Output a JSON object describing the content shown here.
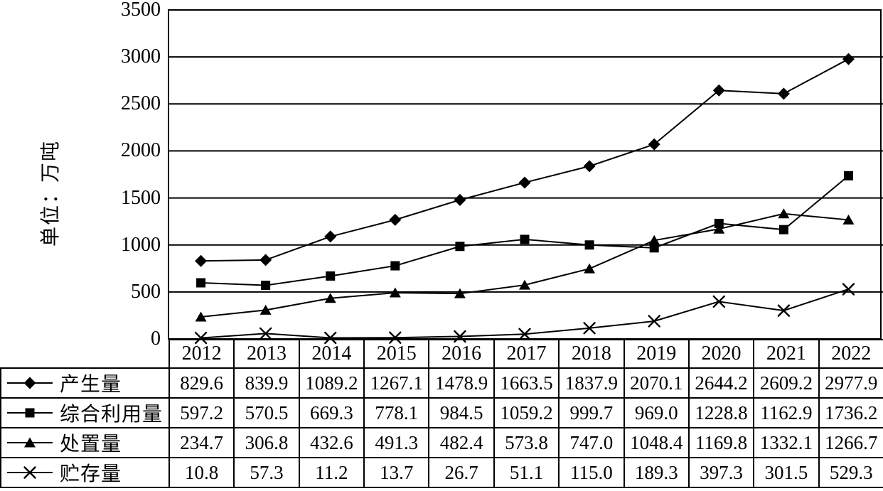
{
  "y_axis": {
    "title": "单位：万吨",
    "ticks": [
      0,
      500,
      1000,
      1500,
      2000,
      2500,
      3000,
      3500
    ],
    "min": 0,
    "max": 3500,
    "step": 500
  },
  "chart_data": {
    "type": "line",
    "title": "",
    "xlabel": "",
    "ylabel": "单位：万吨",
    "ylim": [
      0,
      3500
    ],
    "grid": true,
    "legend_position": "table-left",
    "x": [
      "2012",
      "2013",
      "2014",
      "2015",
      "2016",
      "2017",
      "2018",
      "2019",
      "2020",
      "2021",
      "2022"
    ],
    "series": [
      {
        "name": "产生量",
        "marker": "diamond",
        "values": [
          829.6,
          839.9,
          1089.2,
          1267.1,
          1478.9,
          1663.5,
          1837.9,
          2070.1,
          2644.2,
          2609.2,
          2977.9
        ]
      },
      {
        "name": "综合利用量",
        "marker": "square",
        "values": [
          597.2,
          570.5,
          669.3,
          778.1,
          984.5,
          1059.2,
          999.7,
          969.0,
          1228.8,
          1162.9,
          1736.2
        ]
      },
      {
        "name": "处置量",
        "marker": "triangle",
        "values": [
          234.7,
          306.8,
          432.6,
          491.3,
          482.4,
          573.8,
          747.0,
          1048.4,
          1169.8,
          1332.1,
          1266.7
        ]
      },
      {
        "name": "贮存量",
        "marker": "x",
        "values": [
          10.8,
          57.3,
          11.2,
          13.7,
          26.7,
          51.1,
          115.0,
          189.3,
          397.3,
          301.5,
          529.3
        ]
      }
    ],
    "value_decimals": 1
  },
  "colors": {
    "line": "#000000",
    "marker_fill": "#000000",
    "border": "#000000",
    "background": "#ffffff"
  }
}
